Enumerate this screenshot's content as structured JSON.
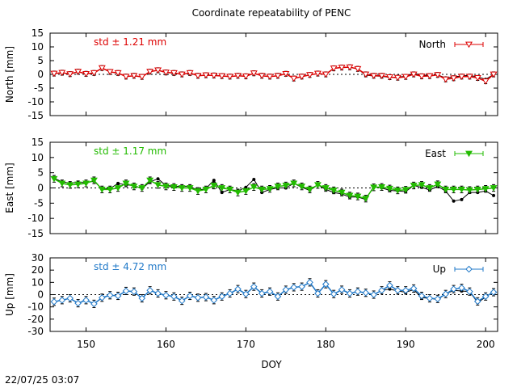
{
  "title": "Coordinate repeatability of PENC",
  "timestamp": "22/07/25 03:07",
  "xlabel": "DOY",
  "xlim": [
    145.5,
    201.5
  ],
  "xticks": [
    150,
    160,
    170,
    180,
    190,
    200
  ],
  "colors": {
    "north": "#dd0000",
    "east": "#22bb00",
    "up": "#1f78c8",
    "black": "#000000"
  },
  "chart_data": [
    {
      "type": "line",
      "panel": "north",
      "ylabel": "North [mm]",
      "ylim": [
        -15,
        15
      ],
      "yticks": [
        -15,
        -10,
        -5,
        0,
        5,
        10,
        15
      ],
      "std_label": "std ± 1.21 mm",
      "legend_label": "North",
      "legend_position": "top-right",
      "marker": "triangle-down-open",
      "x": [
        146,
        147,
        148,
        149,
        150,
        151,
        152,
        153,
        154,
        155,
        156,
        157,
        158,
        159,
        160,
        161,
        162,
        163,
        164,
        165,
        166,
        167,
        168,
        169,
        170,
        171,
        172,
        173,
        174,
        175,
        176,
        177,
        178,
        179,
        180,
        181,
        182,
        183,
        184,
        185,
        186,
        187,
        188,
        189,
        190,
        191,
        192,
        193,
        194,
        195,
        196,
        197,
        198,
        199,
        200,
        201
      ],
      "series": [
        {
          "name": "North",
          "values": [
            0.3,
            0.6,
            0.1,
            1.0,
            0.2,
            0.5,
            2.3,
            0.9,
            0.5,
            -0.8,
            -0.5,
            -0.9,
            1.0,
            1.5,
            0.7,
            0.5,
            0.0,
            0.5,
            -0.5,
            -0.3,
            -0.4,
            -0.6,
            -0.8,
            -0.5,
            -0.7,
            0.4,
            -0.5,
            -0.8,
            -0.5,
            0.2,
            -1.5,
            -0.8,
            -0.2,
            0.3,
            0.0,
            2.2,
            2.5,
            2.6,
            2.0,
            0.0,
            -0.5,
            -0.5,
            -1.0,
            -1.2,
            -0.9,
            0.0,
            -0.7,
            -0.6,
            -0.2,
            -1.8,
            -1.4,
            -0.8,
            -0.8,
            -1.3,
            -2.5,
            0.0
          ],
          "errors": [
            0.9,
            0.9,
            0.9,
            0.9,
            0.9,
            0.9,
            0.9,
            0.9,
            0.9,
            0.9,
            0.9,
            0.9,
            0.9,
            0.9,
            0.9,
            0.9,
            0.9,
            0.9,
            0.9,
            0.9,
            0.9,
            0.9,
            0.9,
            0.9,
            0.9,
            0.9,
            0.9,
            0.9,
            0.9,
            0.9,
            0.9,
            0.9,
            0.9,
            0.9,
            0.9,
            0.9,
            0.9,
            0.9,
            0.9,
            0.9,
            0.9,
            0.9,
            0.9,
            0.9,
            0.9,
            0.9,
            0.9,
            0.9,
            0.9,
            0.9,
            0.9,
            0.9,
            0.9,
            0.9,
            0.9,
            0.9
          ]
        },
        {
          "name": "",
          "values": [
            0.3,
            0.6,
            0.1,
            1.0,
            0.2,
            0.5,
            2.3,
            0.9,
            0.5,
            -0.8,
            -0.5,
            -0.9,
            1.0,
            1.5,
            0.7,
            0.5,
            0.0,
            0.5,
            -0.5,
            -0.3,
            -0.4,
            -0.6,
            -0.8,
            -0.5,
            -0.7,
            0.4,
            -0.5,
            -0.8,
            -0.5,
            0.2,
            -1.5,
            -0.8,
            -0.2,
            0.3,
            0.0,
            2.2,
            2.5,
            2.6,
            2.0,
            -0.3,
            -0.6,
            -0.7,
            -1.1,
            -1.0,
            -0.7,
            0.4,
            -0.3,
            -0.4,
            -0.2,
            -1.3,
            -1.0,
            -0.5,
            -0.4,
            -0.9,
            -1.8,
            0.0
          ]
        }
      ]
    },
    {
      "type": "line",
      "panel": "east",
      "ylabel": "East [mm]",
      "ylim": [
        -15,
        15
      ],
      "yticks": [
        -15,
        -10,
        -5,
        0,
        5,
        10,
        15
      ],
      "std_label": "std ± 1.17 mm",
      "legend_label": "East",
      "legend_position": "top-right",
      "marker": "triangle-down-filled",
      "x": [
        146,
        147,
        148,
        149,
        150,
        151,
        152,
        153,
        154,
        155,
        156,
        157,
        158,
        159,
        160,
        161,
        162,
        163,
        164,
        165,
        166,
        167,
        168,
        169,
        170,
        171,
        172,
        173,
        174,
        175,
        176,
        177,
        178,
        179,
        180,
        181,
        182,
        183,
        184,
        185,
        186,
        187,
        188,
        189,
        190,
        191,
        192,
        193,
        194,
        195,
        196,
        197,
        198,
        199,
        200,
        201
      ],
      "series": [
        {
          "name": "East",
          "values": [
            3.0,
            1.5,
            1.0,
            1.2,
            1.5,
            2.5,
            -0.5,
            -0.5,
            0.0,
            1.5,
            0.5,
            0.0,
            2.5,
            1.0,
            0.5,
            0.3,
            0.0,
            0.0,
            -1.0,
            -0.5,
            0.8,
            0.0,
            -0.5,
            -1.5,
            -1.0,
            0.3,
            -0.5,
            -0.3,
            0.5,
            0.8,
            1.5,
            0.5,
            -0.5,
            1.0,
            0.0,
            -0.8,
            -1.5,
            -2.5,
            -2.8,
            -3.5,
            0.2,
            0.3,
            -0.2,
            -0.8,
            -0.6,
            0.8,
            1.0,
            0.0,
            1.2,
            -0.5,
            -0.5,
            -0.5,
            -0.7,
            -0.5,
            -0.3,
            0.0
          ],
          "errors": [
            1.1,
            1.1,
            1.1,
            1.1,
            1.1,
            1.1,
            1.1,
            1.1,
            1.1,
            1.1,
            1.1,
            1.1,
            1.1,
            1.1,
            1.1,
            1.1,
            1.1,
            1.1,
            1.1,
            1.1,
            1.1,
            1.1,
            1.1,
            1.1,
            1.1,
            1.1,
            1.1,
            1.1,
            1.1,
            1.1,
            1.1,
            1.1,
            1.1,
            1.1,
            1.1,
            1.1,
            1.1,
            1.1,
            1.1,
            1.1,
            1.1,
            1.1,
            1.1,
            1.1,
            1.1,
            1.1,
            1.1,
            1.1,
            1.1,
            1.1,
            1.1,
            1.1,
            1.1,
            1.1,
            1.1,
            1.1
          ]
        },
        {
          "name": "",
          "values": [
            3.2,
            2.0,
            1.6,
            1.8,
            1.8,
            2.2,
            -0.3,
            -0.2,
            1.5,
            1.0,
            0.8,
            -0.2,
            2.0,
            3.0,
            0.8,
            0.6,
            0.5,
            0.5,
            -0.8,
            -0.2,
            2.5,
            -1.5,
            -0.5,
            -1.0,
            0.2,
            2.8,
            -1.5,
            -0.5,
            0.0,
            0.0,
            1.5,
            0.2,
            -0.8,
            1.0,
            -0.5,
            -1.5,
            -2.0,
            -3.0,
            -3.0,
            -3.8,
            0.5,
            0.0,
            -0.8,
            -1.0,
            -1.2,
            0.8,
            0.2,
            -0.7,
            0.5,
            -1.0,
            -4.3,
            -3.8,
            -1.5,
            -1.5,
            -1.0,
            -2.5
          ]
        }
      ]
    },
    {
      "type": "line",
      "panel": "up",
      "ylabel": "Up [mm]",
      "ylim": [
        -30,
        30
      ],
      "yticks": [
        -30,
        -20,
        -10,
        0,
        10,
        20,
        30
      ],
      "std_label": "std ± 4.72 mm",
      "legend_label": "Up",
      "legend_position": "top-right",
      "marker": "diamond-open",
      "x": [
        146,
        147,
        148,
        149,
        150,
        151,
        152,
        153,
        154,
        155,
        156,
        157,
        158,
        159,
        160,
        161,
        162,
        163,
        164,
        165,
        166,
        167,
        168,
        169,
        170,
        171,
        172,
        173,
        174,
        175,
        176,
        177,
        178,
        179,
        180,
        181,
        182,
        183,
        184,
        185,
        186,
        187,
        188,
        189,
        190,
        191,
        192,
        193,
        194,
        195,
        196,
        197,
        198,
        199,
        200,
        201
      ],
      "series": [
        {
          "name": "Up",
          "values": [
            -5.8,
            -4.5,
            -3.0,
            -7.0,
            -4.5,
            -7.5,
            -2.5,
            -0.5,
            -1.0,
            3.0,
            2.5,
            -3.0,
            3.5,
            1.0,
            -0.5,
            -1.5,
            -5.0,
            -1.0,
            -2.5,
            -2.0,
            -4.5,
            -1.5,
            1.0,
            4.5,
            0.5,
            6.5,
            1.0,
            2.5,
            -1.5,
            4.0,
            6.0,
            6.5,
            10.0,
            1.0,
            8.5,
            0.5,
            4.0,
            1.0,
            2.5,
            1.5,
            0.0,
            3.5,
            7.5,
            3.5,
            3.5,
            5.0,
            -1.0,
            -3.0,
            -3.5,
            0.5,
            4.5,
            5.5,
            2.5,
            -5.5,
            -1.5,
            2.0
          ],
          "errors": [
            3.0,
            3.0,
            3.0,
            3.0,
            3.0,
            3.0,
            3.0,
            3.0,
            3.0,
            3.0,
            3.0,
            3.0,
            3.0,
            3.0,
            3.0,
            3.0,
            3.0,
            3.0,
            3.0,
            3.0,
            3.0,
            3.0,
            3.0,
            3.0,
            3.0,
            3.0,
            3.0,
            3.0,
            3.0,
            3.0,
            3.0,
            3.0,
            3.0,
            3.0,
            3.0,
            3.0,
            3.0,
            3.0,
            3.0,
            3.0,
            3.0,
            3.0,
            3.0,
            3.0,
            3.0,
            3.0,
            3.0,
            3.0,
            3.0,
            3.0,
            3.0,
            3.0,
            3.0,
            3.0,
            3.0,
            3.0
          ]
        },
        {
          "name": "",
          "values": [
            -5.8,
            -4.5,
            -3.0,
            -7.0,
            -4.5,
            -7.5,
            -2.5,
            -0.5,
            -1.0,
            3.0,
            2.5,
            -3.0,
            3.5,
            1.0,
            -0.5,
            -1.5,
            -5.0,
            -1.0,
            -2.5,
            -2.0,
            -4.5,
            -1.5,
            1.0,
            4.5,
            0.5,
            6.5,
            1.0,
            2.5,
            -1.5,
            4.0,
            6.0,
            6.5,
            10.0,
            1.0,
            8.5,
            0.5,
            4.0,
            1.0,
            2.5,
            1.5,
            0.0,
            3.5,
            4.5,
            3.0,
            2.0,
            4.0,
            -2.5,
            -3.0,
            -4.0,
            0.5,
            3.5,
            3.0,
            2.5,
            -6.5,
            -2.0,
            2.5
          ]
        }
      ]
    }
  ]
}
